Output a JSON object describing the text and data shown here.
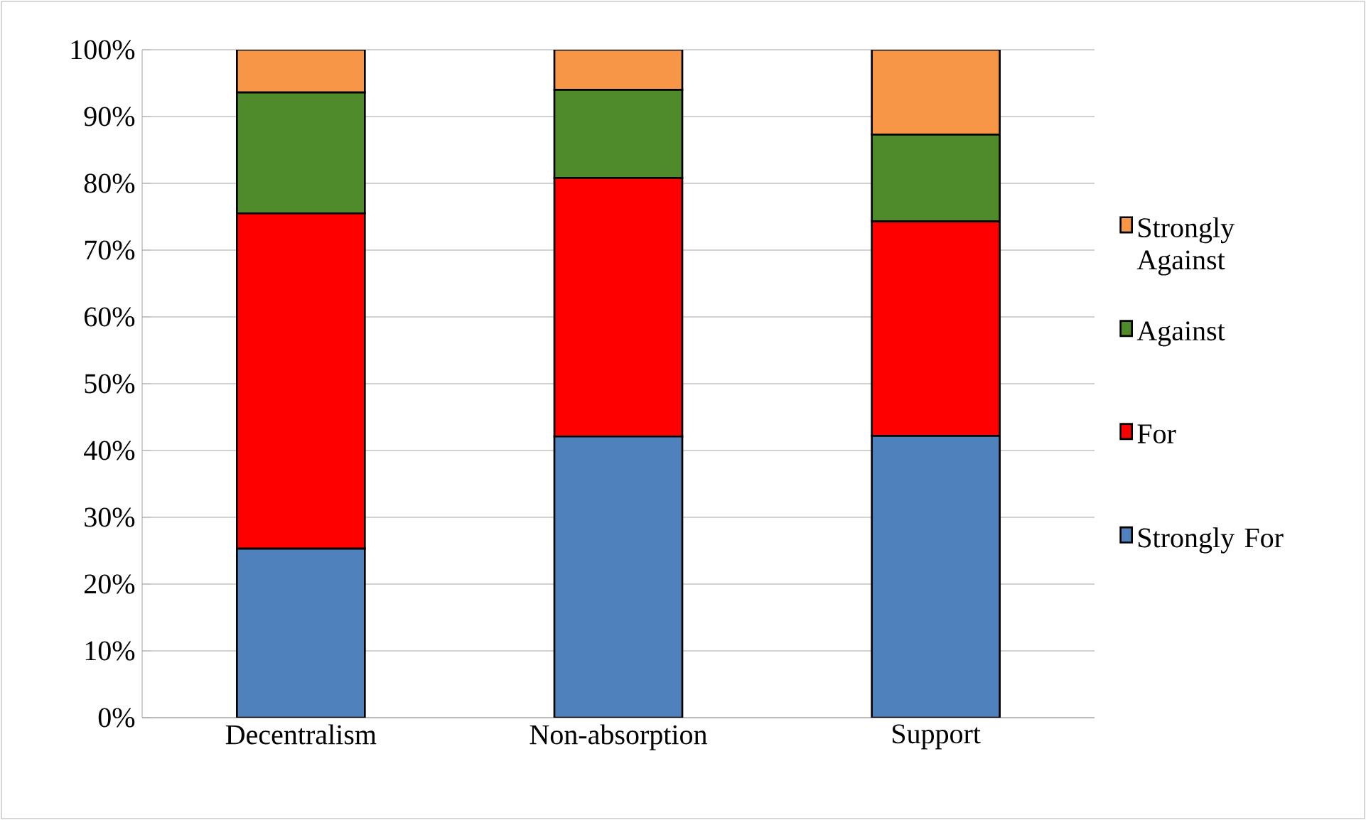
{
  "chart_data": {
    "type": "bar",
    "stacked": true,
    "categories": [
      "Decentralism",
      "Non-absorption",
      "Support"
    ],
    "series": [
      {
        "name": "Strongly For",
        "color": "#4f81bd",
        "values": [
          25.3,
          42.1,
          42.2
        ]
      },
      {
        "name": "For",
        "color": "#ff0000",
        "values": [
          50.2,
          38.7,
          32.1
        ]
      },
      {
        "name": "Against",
        "color": "#4f8a2b",
        "values": [
          18.1,
          13.2,
          13.0
        ]
      },
      {
        "name": "Strongly Against",
        "color": "#f79646",
        "values": [
          6.4,
          6.0,
          12.7
        ]
      }
    ],
    "ylim": [
      0,
      100
    ],
    "yticks": [
      {
        "value": 0,
        "label": "0%"
      },
      {
        "value": 10,
        "label": "10%"
      },
      {
        "value": 20,
        "label": "20%"
      },
      {
        "value": 30,
        "label": "30%"
      },
      {
        "value": 40,
        "label": "40%"
      },
      {
        "value": 50,
        "label": "50%"
      },
      {
        "value": 60,
        "label": "60%"
      },
      {
        "value": 70,
        "label": "70%"
      },
      {
        "value": 80,
        "label": "80%"
      },
      {
        "value": 90,
        "label": "90%"
      },
      {
        "value": 100,
        "label": "100%"
      }
    ],
    "grid": "y",
    "legend": "right"
  }
}
